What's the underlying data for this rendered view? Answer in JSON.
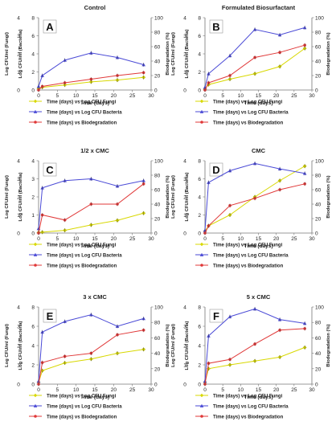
{
  "chart_data": [
    {
      "type": "line",
      "letter": "A",
      "title": "Control",
      "xlabel": "Time (days)",
      "ylabel_left": "Log CFU/ml (Fungi)",
      "ylabel_mid": "Log CFU/ml (Bacteria)",
      "ylabel_right": "Biodegradation (%)",
      "xlim": [
        0,
        30
      ],
      "ylim_left": [
        0,
        4
      ],
      "ylim_mid": [
        0,
        8
      ],
      "ylim_right": [
        0,
        100
      ],
      "xticks": [
        "0",
        "5",
        "10",
        "15",
        "20",
        "25",
        "30"
      ],
      "yticks_left": [
        "0",
        "1",
        "2",
        "3",
        "4"
      ],
      "yticks_mid": [
        "0",
        "2",
        "4",
        "6",
        "8"
      ],
      "yticks_right": [
        "0",
        "20",
        "40",
        "60",
        "80",
        "100"
      ],
      "x": [
        0,
        1,
        7,
        14,
        21,
        28
      ],
      "series": [
        {
          "name": "Time (days) vs Log CFU Fungi",
          "axis": "left",
          "color": "#d8d800",
          "values": [
            0.08,
            0.15,
            0.28,
            0.45,
            0.55,
            0.7
          ]
        },
        {
          "name": "Time (days) vs Log CFU Bacteria",
          "axis": "mid",
          "color": "#4a4ad6",
          "values": [
            0.4,
            1.6,
            3.3,
            4.1,
            3.6,
            2.8
          ]
        },
        {
          "name": "Time (days) vs Biodegradation",
          "axis": "right",
          "color": "#e03838",
          "values": [
            0,
            5,
            10,
            15,
            20,
            24
          ]
        }
      ]
    },
    {
      "type": "line",
      "letter": "B",
      "title": "Formulated Biosurfactant",
      "xlabel": "Time (days)",
      "ylabel_left": "Log CFU/ml (Fungi)",
      "ylabel_mid": "Log CFU/ml (Bacteria)",
      "ylabel_right": "Biodegradation (%)",
      "xlim": [
        0,
        30
      ],
      "ylim_left": [
        0,
        4
      ],
      "ylim_mid": [
        0,
        8
      ],
      "ylim_right": [
        0,
        100
      ],
      "xticks": [
        "0",
        "5",
        "10",
        "15",
        "20",
        "25",
        "30"
      ],
      "yticks_left": [
        "0",
        "1",
        "2",
        "3",
        "4"
      ],
      "yticks_mid": [
        "0",
        "2",
        "4",
        "6",
        "8"
      ],
      "yticks_right": [
        "0",
        "20",
        "40",
        "60",
        "80",
        "100"
      ],
      "x": [
        0,
        1,
        7,
        14,
        21,
        28
      ],
      "series": [
        {
          "name": "Time (days) vs Log CFU Fungi",
          "axis": "left",
          "color": "#d8d800",
          "values": [
            0.05,
            0.3,
            0.6,
            0.9,
            1.3,
            2.3
          ]
        },
        {
          "name": "Time (days) vs Log CFU Bacteria",
          "axis": "mid",
          "color": "#4a4ad6",
          "values": [
            0.3,
            1.8,
            3.8,
            6.7,
            6.1,
            6.9
          ]
        },
        {
          "name": "Time (days) vs Biodegradation",
          "axis": "right",
          "color": "#e03838",
          "values": [
            0,
            10,
            20,
            45,
            52,
            62
          ]
        }
      ]
    },
    {
      "type": "line",
      "letter": "C",
      "title": "1/2 x CMC",
      "xlabel": "Time (days)",
      "ylabel_left": "Log CFU/ml (Fungi)",
      "ylabel_mid": "Log CFU/ml (Bacteria)",
      "ylabel_right": "Biodegradation (%)",
      "xlim": [
        0,
        30
      ],
      "ylim_left": [
        0,
        4
      ],
      "ylim_mid": [
        0,
        4
      ],
      "ylim_right": [
        0,
        100
      ],
      "xticks": [
        "0",
        "5",
        "10",
        "15",
        "20",
        "25",
        "30"
      ],
      "yticks_left": [
        "0",
        "1",
        "2",
        "3",
        "4"
      ],
      "yticks_mid": [
        "0",
        "1",
        "2",
        "3",
        "4"
      ],
      "yticks_right": [
        "0",
        "20",
        "40",
        "60",
        "80",
        "100"
      ],
      "x": [
        0,
        1,
        7,
        14,
        21,
        28
      ],
      "series": [
        {
          "name": "Time (days) vs Log CFU Fungi",
          "axis": "left",
          "color": "#d8d800",
          "values": [
            0.03,
            0.05,
            0.15,
            0.45,
            0.7,
            1.1
          ]
        },
        {
          "name": "Time (days) vs Log CFU Bacteria",
          "axis": "mid",
          "color": "#4a4ad6",
          "values": [
            0.25,
            2.5,
            2.9,
            3.0,
            2.6,
            2.9
          ]
        },
        {
          "name": "Time (days) vs Biodegradation",
          "axis": "right",
          "color": "#e03838",
          "values": [
            0,
            25,
            18,
            40,
            40,
            68
          ]
        }
      ]
    },
    {
      "type": "line",
      "letter": "D",
      "title": "CMC",
      "xlabel": "Time (days)",
      "ylabel_left": "Log CFU/ml (Fungi)",
      "ylabel_mid": "Log CFU/ml (Bacteria)",
      "ylabel_right": "Biodegradation (%)",
      "xlim": [
        0,
        30
      ],
      "ylim_left": [
        0,
        4
      ],
      "ylim_mid": [
        0,
        8
      ],
      "ylim_right": [
        0,
        100
      ],
      "xticks": [
        "0",
        "5",
        "10",
        "15",
        "20",
        "25",
        "30"
      ],
      "yticks_left": [
        "0",
        "1",
        "2",
        "3",
        "4"
      ],
      "yticks_mid": [
        "0",
        "2",
        "4",
        "6",
        "8"
      ],
      "yticks_right": [
        "0",
        "20",
        "40",
        "60",
        "80",
        "100"
      ],
      "x": [
        0,
        1,
        7,
        14,
        21,
        28
      ],
      "series": [
        {
          "name": "Time (days) vs Log CFU Fungi",
          "axis": "left",
          "color": "#d8d800",
          "values": [
            0.1,
            0.4,
            1.0,
            2.0,
            2.9,
            3.7
          ]
        },
        {
          "name": "Time (days) vs Log CFU Bacteria",
          "axis": "mid",
          "color": "#4a4ad6",
          "values": [
            0.3,
            5.6,
            6.9,
            7.7,
            7.1,
            6.6
          ]
        },
        {
          "name": "Time (days) vs Biodegradation",
          "axis": "right",
          "color": "#e03838",
          "values": [
            0,
            10,
            38,
            48,
            60,
            68
          ]
        }
      ]
    },
    {
      "type": "line",
      "letter": "E",
      "title": "3 x CMC",
      "xlabel": "Time (days)",
      "ylabel_left": "Log CFU/ml (Fungi)",
      "ylabel_mid": "Log CFU/ml (Bacteria)",
      "ylabel_right": "Biodegradation (%)",
      "xlim": [
        0,
        30
      ],
      "ylim_left": [
        0,
        4
      ],
      "ylim_mid": [
        0,
        8
      ],
      "ylim_right": [
        0,
        100
      ],
      "xticks": [
        "0",
        "5",
        "10",
        "15",
        "20",
        "25",
        "30"
      ],
      "yticks_left": [
        "0",
        "1",
        "2",
        "3",
        "4"
      ],
      "yticks_mid": [
        "0",
        "2",
        "4",
        "6",
        "8"
      ],
      "yticks_right": [
        "0",
        "20",
        "40",
        "60",
        "80",
        "100"
      ],
      "x": [
        0,
        1,
        7,
        14,
        21,
        28
      ],
      "series": [
        {
          "name": "Time (days) vs Log CFU Fungi",
          "axis": "left",
          "color": "#d8d800",
          "values": [
            0.1,
            0.7,
            1.1,
            1.3,
            1.6,
            1.8
          ]
        },
        {
          "name": "Time (days) vs Log CFU Bacteria",
          "axis": "mid",
          "color": "#4a4ad6",
          "values": [
            0.3,
            5.4,
            6.5,
            7.2,
            6.0,
            6.8
          ]
        },
        {
          "name": "Time (days) vs Biodegradation",
          "axis": "right",
          "color": "#e03838",
          "values": [
            0,
            28,
            36,
            40,
            64,
            70
          ]
        }
      ]
    },
    {
      "type": "line",
      "letter": "F",
      "title": "5 x CMC",
      "xlabel": "Time (days)",
      "ylabel_left": "Log CFU/ml (Fungi)",
      "ylabel_mid": "Log CFU/ml (Bacteria)",
      "ylabel_right": "Biodegradation (%)",
      "xlim": [
        0,
        30
      ],
      "ylim_left": [
        0,
        4
      ],
      "ylim_mid": [
        0,
        8
      ],
      "ylim_right": [
        0,
        100
      ],
      "xticks": [
        "0",
        "5",
        "10",
        "15",
        "20",
        "25",
        "30"
      ],
      "yticks_left": [
        "0",
        "1",
        "2",
        "3",
        "4"
      ],
      "yticks_mid": [
        "0",
        "2",
        "4",
        "6",
        "8"
      ],
      "yticks_right": [
        "0",
        "20",
        "40",
        "60",
        "80",
        "100"
      ],
      "x": [
        0,
        1,
        7,
        14,
        21,
        28
      ],
      "series": [
        {
          "name": "Time (days) vs Log CFU Fungi",
          "axis": "left",
          "color": "#d8d800",
          "values": [
            0.1,
            0.8,
            1.0,
            1.2,
            1.4,
            1.9
          ]
        },
        {
          "name": "Time (days) vs Log CFU Bacteria",
          "axis": "mid",
          "color": "#4a4ad6",
          "values": [
            0.3,
            5.0,
            7.0,
            7.8,
            6.7,
            6.3
          ]
        },
        {
          "name": "Time (days) vs Biodegradation",
          "axis": "right",
          "color": "#e03838",
          "values": [
            0,
            27,
            32,
            52,
            70,
            72
          ]
        }
      ]
    }
  ]
}
